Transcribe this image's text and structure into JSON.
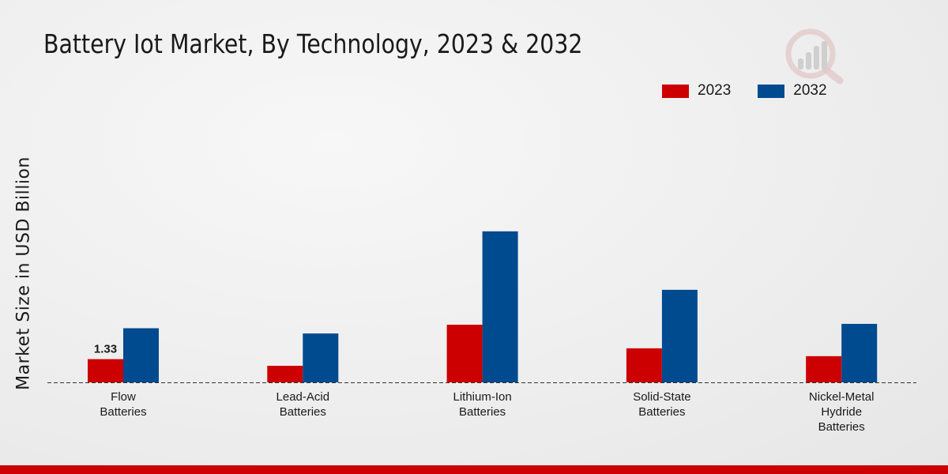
{
  "title": "Battery Iot Market, By Technology, 2023 & 2032",
  "colors": {
    "series_2023": "#cc0000",
    "series_2032": "#004a8f",
    "footer": "#cc0000"
  },
  "logo_icon": "market-research-logo-icon",
  "chart_data": {
    "type": "bar",
    "title": "Battery Iot Market, By Technology, 2023 & 2032",
    "xlabel": "",
    "ylabel": "Market Size in USD Billion",
    "categories": [
      "Flow\nBatteries",
      "Lead-Acid\nBatteries",
      "Lithium-Ion\nBatteries",
      "Solid-State\nBatteries",
      "Nickel-Metal\nHydride\nBatteries"
    ],
    "series": [
      {
        "name": "2023",
        "color": "#cc0000",
        "values": [
          1.33,
          0.95,
          3.3,
          1.95,
          1.5
        ]
      },
      {
        "name": "2032",
        "color": "#004a8f",
        "values": [
          3.1,
          2.8,
          8.65,
          5.3,
          3.35
        ]
      }
    ],
    "data_labels": [
      {
        "series": 0,
        "index": 0,
        "text": "1.33"
      }
    ],
    "ylim": [
      0,
      12
    ],
    "grid": false,
    "legend": "top-right"
  }
}
